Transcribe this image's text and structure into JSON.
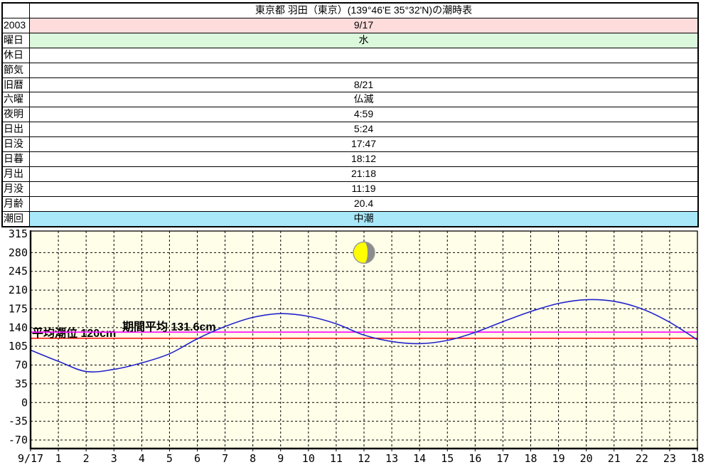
{
  "page_title": "東京都 羽田（東京）(139°46'E 35°32'N)の潮時表",
  "info_table": {
    "corner_label": "",
    "rows": [
      {
        "label": "2003",
        "value": "9/17",
        "bg": "#FFDCDC"
      },
      {
        "label": "曜日",
        "value": "水",
        "bg": "#DCF8DC"
      },
      {
        "label": "休日",
        "value": "",
        "bg": "#FFFFFF"
      },
      {
        "label": "節気",
        "value": "",
        "bg": "#FFFFFF"
      },
      {
        "label": "旧暦",
        "value": "8/21",
        "bg": "#FFFFFF"
      },
      {
        "label": "六曜",
        "value": "仏滅",
        "bg": "#FFFFFF"
      },
      {
        "label": "夜明",
        "value": "4:59",
        "bg": "#FFFFFF"
      },
      {
        "label": "日出",
        "value": "5:24",
        "bg": "#FFFFFF"
      },
      {
        "label": "日没",
        "value": "17:47",
        "bg": "#FFFFFF"
      },
      {
        "label": "日暮",
        "value": "18:12",
        "bg": "#FFFFFF"
      },
      {
        "label": "月出",
        "value": "21:18",
        "bg": "#FFFFFF"
      },
      {
        "label": "月没",
        "value": "11:19",
        "bg": "#FFFFFF"
      },
      {
        "label": "月齢",
        "value": "20.4",
        "bg": "#FFFFFF"
      },
      {
        "label": "潮回",
        "value": "中潮",
        "bg": "#A8E8F8"
      }
    ]
  },
  "chart_data": {
    "type": "line",
    "title": "",
    "x_hours": [
      0,
      1,
      2,
      3,
      4,
      5,
      6,
      7,
      8,
      9,
      10,
      11,
      12,
      13,
      14,
      15,
      16,
      17,
      18,
      19,
      20,
      21,
      22,
      23,
      24
    ],
    "xtick_labels": [
      "9/17",
      "1",
      "2",
      "3",
      "4",
      "5",
      "6",
      "7",
      "8",
      "9",
      "10",
      "11",
      "12",
      "13",
      "14",
      "15",
      "16",
      "17",
      "18",
      "19",
      "20",
      "21",
      "22",
      "23",
      "18"
    ],
    "ytick_values": [
      315,
      280,
      245,
      210,
      175,
      140,
      105,
      70,
      35,
      0,
      -35,
      -70
    ],
    "ylim": [
      -85,
      315
    ],
    "grid": true,
    "plot_bg": "#FFFFE9",
    "line_color": "#2222CC",
    "series": [
      {
        "name": "tide_level_cm",
        "values": [
          98,
          77,
          58,
          62,
          74,
          91,
          119,
          142,
          159,
          166,
          161,
          147,
          126,
          114,
          110,
          116,
          131,
          151,
          170,
          185,
          192,
          189,
          175,
          150,
          117
        ]
      }
    ],
    "reference_lines": [
      {
        "label": "平均潮位 120cm",
        "value": 120,
        "color": "#FF0000"
      },
      {
        "label": "期間平均 131.6cm",
        "value": 131.6,
        "color": "#FF00FF"
      }
    ],
    "moon_marker": {
      "hour": 12,
      "value": 280,
      "age": 20.4,
      "phase": "waning-gibbous",
      "lit_color": "#FFFF00",
      "shadow_color": "#8C8C8C"
    }
  }
}
